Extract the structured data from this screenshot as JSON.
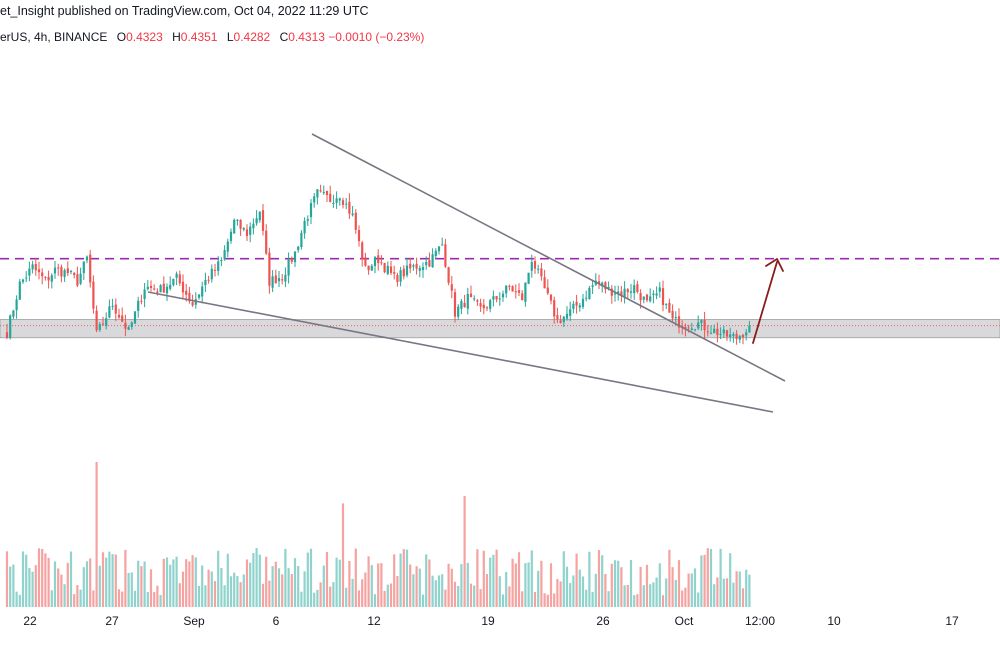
{
  "header": {
    "publish_line": "et_Insight published on TradingView.com, Oct 04, 2022 11:29 UTC"
  },
  "legend": {
    "symbol": "erUS, 4h, BINANCE",
    "o_label": "O",
    "o_value": "0.4323",
    "h_label": "H",
    "h_value": "0.4351",
    "l_label": "L",
    "l_value": "0.4282",
    "c_label": "C",
    "c_value": "0.4313",
    "change": "−0.0010 (−0.23%)"
  },
  "colors": {
    "up": "#26a69a",
    "down": "#ef5350",
    "up_volume": "#8fd3cc",
    "down_volume": "#f5a3a1",
    "trendline": "#7a7583",
    "resistance": "#9c27b0",
    "support_zone": "#d9d9dc",
    "arrow": "#8b1a1a"
  },
  "chart_data": {
    "type": "candlestick",
    "timeframe": "4h",
    "x_tick_labels": [
      "22",
      "27",
      "Sep",
      "6",
      "12",
      "19",
      "26",
      "Oct",
      "12:00",
      "10",
      "17"
    ],
    "anchors": [
      [
        0,
        0.429
      ],
      [
        4,
        0.446
      ],
      [
        8,
        0.452
      ],
      [
        12,
        0.447
      ],
      [
        15,
        0.451
      ],
      [
        19,
        0.45
      ],
      [
        22,
        0.447
      ],
      [
        25,
        0.455
      ],
      [
        28,
        0.428
      ],
      [
        33,
        0.439
      ],
      [
        38,
        0.429
      ],
      [
        43,
        0.445
      ],
      [
        48,
        0.444
      ],
      [
        53,
        0.448
      ],
      [
        58,
        0.439
      ],
      [
        62,
        0.447
      ],
      [
        67,
        0.454
      ],
      [
        71,
        0.468
      ],
      [
        75,
        0.464
      ],
      [
        79,
        0.472
      ],
      [
        82,
        0.447
      ],
      [
        86,
        0.449
      ],
      [
        90,
        0.457
      ],
      [
        93,
        0.468
      ],
      [
        97,
        0.478
      ],
      [
        101,
        0.476
      ],
      [
        104,
        0.478
      ],
      [
        108,
        0.47
      ],
      [
        112,
        0.451
      ],
      [
        116,
        0.455
      ],
      [
        121,
        0.448
      ],
      [
        127,
        0.452
      ],
      [
        132,
        0.454
      ],
      [
        136,
        0.46
      ],
      [
        140,
        0.436
      ],
      [
        144,
        0.441
      ],
      [
        148,
        0.437
      ],
      [
        153,
        0.441
      ],
      [
        157,
        0.445
      ],
      [
        161,
        0.441
      ],
      [
        164,
        0.455
      ],
      [
        168,
        0.444
      ],
      [
        172,
        0.433
      ],
      [
        176,
        0.436
      ],
      [
        180,
        0.441
      ],
      [
        184,
        0.447
      ],
      [
        188,
        0.444
      ],
      [
        192,
        0.443
      ],
      [
        196,
        0.445
      ],
      [
        200,
        0.439
      ],
      [
        204,
        0.443
      ],
      [
        208,
        0.433
      ],
      [
        212,
        0.432
      ],
      [
        216,
        0.432
      ],
      [
        220,
        0.43
      ],
      [
        224,
        0.428
      ],
      [
        228,
        0.427
      ],
      [
        232,
        0.431
      ]
    ],
    "volume_spikes": [
      [
        28,
        0.98
      ],
      [
        105,
        0.7
      ],
      [
        143,
        0.75
      ]
    ],
    "y_range": [
      0.405,
      0.497
    ],
    "support_zone": [
      0.427,
      0.4335
    ],
    "resistance_level": 0.455,
    "current_price": 0.4313
  }
}
